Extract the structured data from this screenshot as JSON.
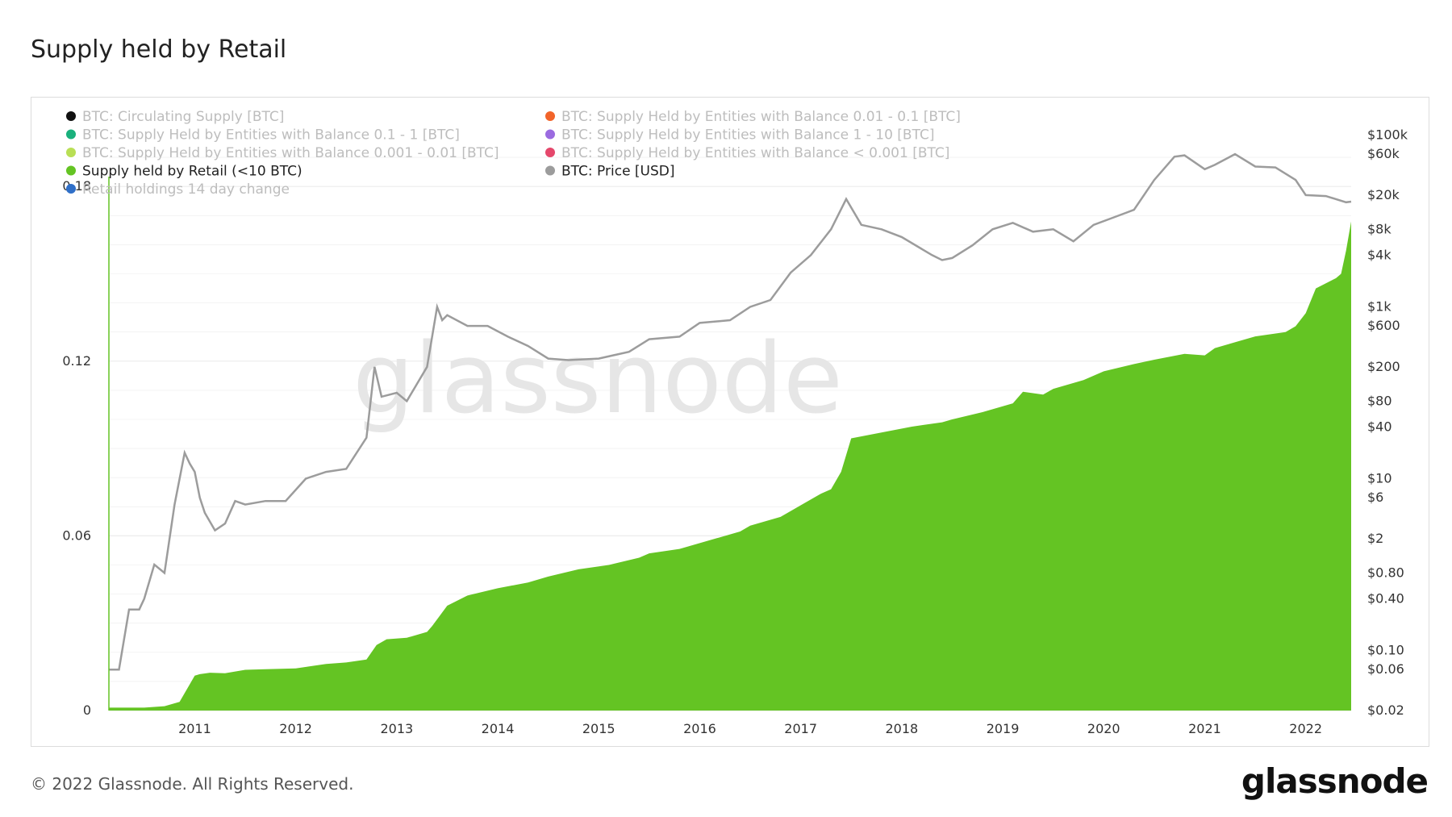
{
  "header": {
    "title": "Supply held by Retail"
  },
  "footer": {
    "copyright": "© 2022 Glassnode. All Rights Reserved.",
    "logo": "glassnode"
  },
  "watermark": "glassnode",
  "colors": {
    "area": "#64c423",
    "price": "#9c9c9c",
    "grid": "#ececec",
    "watermark": "#e6e6e6"
  },
  "chart_data": {
    "type": "area",
    "title": "Supply held by Retail",
    "legend": [
      {
        "label": "BTC: Circulating Supply [BTC]",
        "color": "#111111",
        "active": false
      },
      {
        "label": "BTC: Supply Held by Entities with Balance 0.01 - 0.1 [BTC]",
        "color": "#f2642a",
        "active": false
      },
      {
        "label": "BTC: Supply Held by Entities with Balance 0.1 - 1 [BTC]",
        "color": "#1ab07c",
        "active": false
      },
      {
        "label": "BTC: Supply Held by Entities with Balance 1 - 10 [BTC]",
        "color": "#9b6be0",
        "active": false
      },
      {
        "label": "BTC: Supply Held by Entities with Balance 0.001 - 0.01 [BTC]",
        "color": "#b9df55",
        "active": false
      },
      {
        "label": "BTC: Supply Held by Entities with Balance < 0.001 [BTC]",
        "color": "#e5476b",
        "active": false
      },
      {
        "label": "Supply held by Retail (<10 BTC)",
        "color": "#64c423",
        "active": true
      },
      {
        "label": "BTC: Price [USD]",
        "color": "#9c9c9c",
        "active": true
      },
      {
        "label": "Retail holdings 14 day change",
        "color": "#2f6fc8",
        "active": false
      }
    ],
    "legend_placement": "top-left",
    "x_ticks": [
      "2011",
      "2012",
      "2013",
      "2014",
      "2015",
      "2016",
      "2017",
      "2018",
      "2019",
      "2020",
      "2021",
      "2022"
    ],
    "x_range": [
      2010.65,
      2022.95
    ],
    "y_left": {
      "ticks": [
        "0",
        "0.06",
        "0.12",
        "0.18"
      ],
      "tick_values": [
        0,
        0.06,
        0.12,
        0.18
      ],
      "range": [
        0,
        0.2
      ]
    },
    "y_right": {
      "scale": "log",
      "ticks": [
        "$100k",
        "$60k",
        "$20k",
        "$8k",
        "$4k",
        "$1k",
        "$600",
        "$200",
        "$80",
        "$40",
        "$10",
        "$6",
        "$2",
        "$0.80",
        "$0.40",
        "$0.10",
        "$0.06",
        "$0.02"
      ],
      "tick_values": [
        100000,
        60000,
        20000,
        8000,
        4000,
        1000,
        600,
        200,
        80,
        40,
        10,
        6,
        2,
        0.8,
        0.4,
        0.1,
        0.06,
        0.02
      ],
      "range": [
        0.02,
        120000
      ]
    },
    "grid": true,
    "series": [
      {
        "name": "Supply held by Retail (<10 BTC)",
        "axis": "left",
        "x": [
          2010.65,
          2011.0,
          2011.2,
          2011.35,
          2011.45,
          2011.5,
          2011.55,
          2011.65,
          2011.8,
          2012.0,
          2012.2,
          2012.5,
          2012.8,
          2013.0,
          2013.2,
          2013.3,
          2013.4,
          2013.6,
          2013.8,
          2013.85,
          2014.0,
          2014.2,
          2014.5,
          2014.8,
          2015.0,
          2015.3,
          2015.6,
          2015.9,
          2016.0,
          2016.3,
          2016.6,
          2016.9,
          2017.0,
          2017.3,
          2017.5,
          2017.7,
          2017.8,
          2017.9,
          2018.0,
          2018.3,
          2018.6,
          2018.9,
          2019.0,
          2019.3,
          2019.6,
          2019.7,
          2019.9,
          2020.0,
          2020.2,
          2020.3,
          2020.5,
          2020.8,
          2021.0,
          2021.3,
          2021.5,
          2021.6,
          2021.9,
          2022.0,
          2022.3,
          2022.4,
          2022.5,
          2022.6,
          2022.8,
          2022.85,
          2022.9,
          2022.95
        ],
        "y": [
          0.001,
          0.001,
          0.0015,
          0.003,
          0.009,
          0.012,
          0.0125,
          0.013,
          0.0128,
          0.014,
          0.0142,
          0.0145,
          0.016,
          0.0165,
          0.0175,
          0.0225,
          0.0245,
          0.025,
          0.027,
          0.029,
          0.036,
          0.0395,
          0.042,
          0.044,
          0.046,
          0.0485,
          0.05,
          0.0525,
          0.054,
          0.0555,
          0.0585,
          0.0615,
          0.0635,
          0.0665,
          0.0705,
          0.0745,
          0.076,
          0.082,
          0.0935,
          0.0955,
          0.0975,
          0.099,
          0.1,
          0.1025,
          0.1055,
          0.1095,
          0.1085,
          0.1105,
          0.1125,
          0.1135,
          0.1165,
          0.119,
          0.1205,
          0.1225,
          0.122,
          0.1245,
          0.1275,
          0.1285,
          0.13,
          0.132,
          0.1365,
          0.145,
          0.1485,
          0.15,
          0.158,
          0.168
        ]
      },
      {
        "name": "BTC: Price [USD]",
        "axis": "right",
        "x": [
          2010.65,
          2010.75,
          2010.85,
          2010.95,
          2011.0,
          2011.1,
          2011.2,
          2011.3,
          2011.4,
          2011.45,
          2011.5,
          2011.55,
          2011.6,
          2011.7,
          2011.8,
          2011.9,
          2012.0,
          2012.2,
          2012.4,
          2012.6,
          2012.8,
          2013.0,
          2013.2,
          2013.28,
          2013.35,
          2013.5,
          2013.6,
          2013.8,
          2013.9,
          2013.95,
          2014.0,
          2014.2,
          2014.4,
          2014.6,
          2014.8,
          2015.0,
          2015.2,
          2015.5,
          2015.8,
          2016.0,
          2016.3,
          2016.5,
          2016.8,
          2017.0,
          2017.2,
          2017.4,
          2017.6,
          2017.8,
          2017.95,
          2018.1,
          2018.3,
          2018.5,
          2018.8,
          2018.9,
          2019.0,
          2019.2,
          2019.4,
          2019.6,
          2019.8,
          2020.0,
          2020.2,
          2020.4,
          2020.6,
          2020.8,
          2021.0,
          2021.2,
          2021.3,
          2021.5,
          2021.6,
          2021.8,
          2022.0,
          2022.2,
          2022.4,
          2022.5,
          2022.7,
          2022.9,
          2022.95
        ],
        "y": [
          0.06,
          0.06,
          0.3,
          0.3,
          0.4,
          1,
          0.8,
          5,
          20,
          15,
          12,
          6,
          4,
          2.5,
          3,
          5.5,
          5,
          5.5,
          5.5,
          10,
          12,
          13,
          30,
          200,
          90,
          100,
          80,
          200,
          1000,
          700,
          800,
          600,
          600,
          450,
          350,
          250,
          240,
          250,
          300,
          420,
          450,
          650,
          700,
          1000,
          1200,
          2500,
          4000,
          8000,
          18000,
          9000,
          8000,
          6500,
          4000,
          3500,
          3700,
          5200,
          8000,
          9500,
          7500,
          8000,
          5800,
          9000,
          11000,
          13500,
          30000,
          56000,
          58000,
          40000,
          45000,
          60000,
          43000,
          42000,
          30000,
          20000,
          19500,
          16500,
          16800
        ]
      }
    ]
  }
}
